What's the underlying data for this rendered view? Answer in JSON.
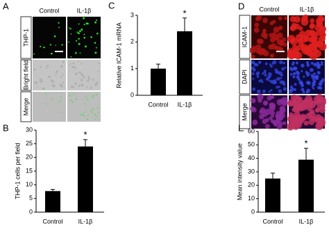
{
  "panel_labels": [
    "A",
    "B",
    "C",
    "D",
    "E"
  ],
  "panel_a": {
    "columns": [
      "Control",
      "IL-1β"
    ],
    "rows": [
      "THP-1",
      "Bright field",
      "Merge"
    ]
  },
  "panel_d": {
    "columns": [
      "Control",
      "IL-1β"
    ],
    "rows": [
      "ICAM-1",
      "DAPI",
      "Merge"
    ]
  },
  "chart_data": [
    {
      "type": "bar",
      "y_label": "THP-1 cells per field",
      "categories": [
        "Control",
        "IL-1β"
      ],
      "values": [
        7.7,
        24
      ],
      "errors": [
        0.6,
        2.5
      ],
      "significance": [
        null,
        "*"
      ],
      "color": "#000000",
      "ylim": [
        0,
        30
      ],
      "yticks": [
        0,
        5,
        10,
        15,
        20,
        25,
        30
      ]
    },
    {
      "type": "bar",
      "y_label": "Relative ICAM-1 mRNA",
      "categories": [
        "Control",
        "IL-1β"
      ],
      "values": [
        1.0,
        2.4
      ],
      "errors": [
        0.17,
        0.5
      ],
      "significance": [
        null,
        "*"
      ],
      "color": "#000000",
      "ylim": [
        0,
        3
      ],
      "yticks": [
        0,
        1,
        2,
        3
      ]
    },
    {
      "type": "bar",
      "y_label": "Mean intensity value",
      "categories": [
        "Control",
        "IL-1β"
      ],
      "values": [
        25,
        39
      ],
      "errors": [
        4,
        8.5
      ],
      "significance": [
        null,
        "*"
      ],
      "color": "#000000",
      "ylim": [
        0,
        60
      ],
      "yticks": [
        0,
        10,
        20,
        30,
        40,
        50,
        60
      ]
    }
  ]
}
